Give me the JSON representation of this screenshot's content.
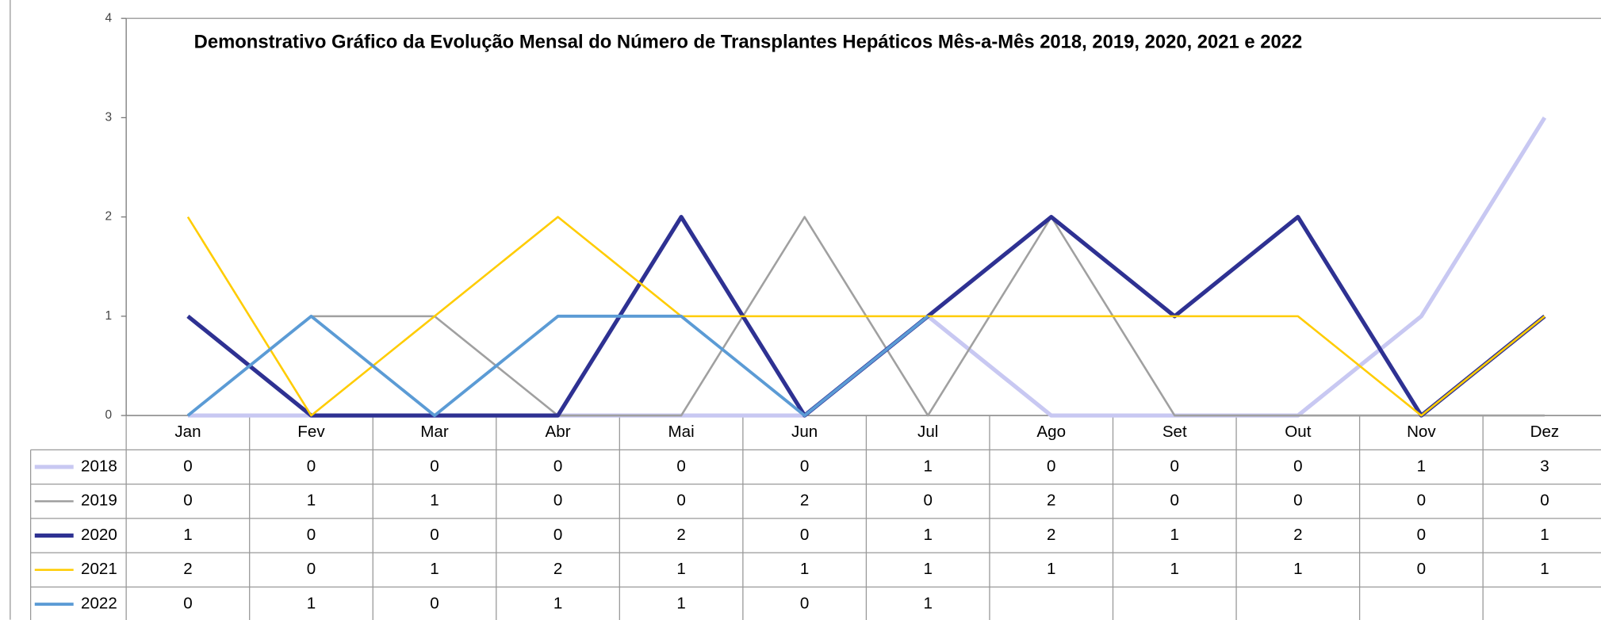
{
  "chart_data": {
    "type": "line",
    "title": "Demonstrativo Gráfico da Evolução Mensal do Número de Transplantes Hepáticos Mês-a-Mês 2018, 2019, 2020, 2021 e 2022",
    "categories": [
      "Jan",
      "Fev",
      "Mar",
      "Abr",
      "Mai",
      "Jun",
      "Jul",
      "Ago",
      "Set",
      "Out",
      "Nov",
      "Dez"
    ],
    "series": [
      {
        "name": "2018",
        "color": "#c8c8f2",
        "width": 4,
        "values": [
          0,
          0,
          0,
          0,
          0,
          0,
          1,
          0,
          0,
          0,
          1,
          3
        ]
      },
      {
        "name": "2019",
        "color": "#a0a0a0",
        "width": 2,
        "values": [
          0,
          1,
          1,
          0,
          0,
          2,
          0,
          2,
          0,
          0,
          0,
          0
        ]
      },
      {
        "name": "2020",
        "color": "#2e3192",
        "width": 4,
        "values": [
          1,
          0,
          0,
          0,
          2,
          0,
          1,
          2,
          1,
          2,
          0,
          1
        ]
      },
      {
        "name": "2021",
        "color": "#ffcc00",
        "width": 2,
        "values": [
          2,
          0,
          1,
          2,
          1,
          1,
          1,
          1,
          1,
          1,
          0,
          1
        ]
      },
      {
        "name": "2022",
        "color": "#5b9bd5",
        "width": 3,
        "values": [
          0,
          1,
          0,
          1,
          1,
          0,
          1,
          null,
          null,
          null,
          null,
          null
        ]
      }
    ],
    "ylim": [
      0,
      4
    ],
    "yticks": [
      0,
      1,
      2,
      3,
      4
    ],
    "grid": false,
    "data_table": true
  }
}
